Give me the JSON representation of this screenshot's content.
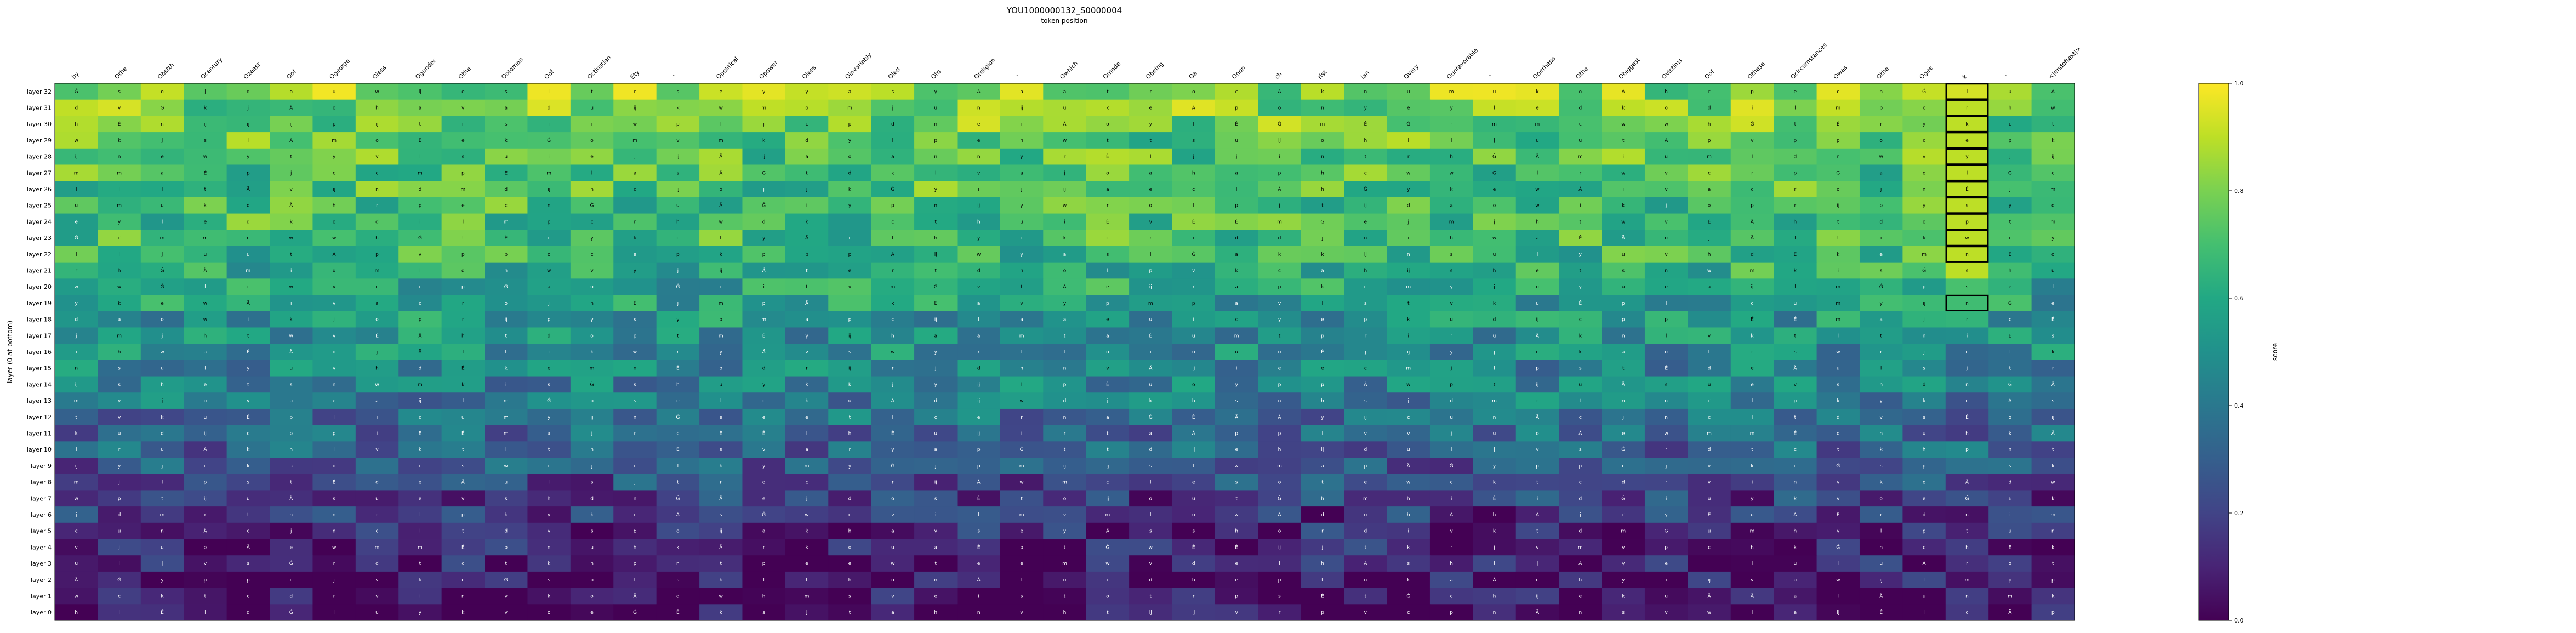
{
  "chart_data": {
    "type": "heatmap",
    "title": "YOU1000000132_S0000004",
    "xlabel": "token position",
    "ylabel": "layer (0 at bottom)",
    "colorbar_label": "score",
    "colorbar_range": [
      0.0,
      1.0
    ],
    "colorbar_ticks": [
      "0.0",
      "0.2",
      "0.4",
      "0.6",
      "0.8",
      "1.0"
    ],
    "colormap": "viridis",
    "x_tokens": [
      "by",
      "Othe",
      "Obstth",
      "Ocentury",
      "Ozeast",
      "Oof",
      "Ogeorge",
      "Oiess",
      "Ogunder",
      "Othe",
      "Ootoman",
      "Oof",
      "Octinstian",
      "Ety",
      "ˋ",
      "Opolitical",
      "Opower",
      "Oiess",
      "Oinvariably",
      "Oled",
      "Oto",
      "Oreligion",
      "ˋ",
      "Owhich",
      "Omade",
      "Obeing",
      "Oa",
      "Onon",
      "ch",
      "rist",
      "ian",
      "Overy",
      "Ounfavorable",
      "ˋ",
      "Operhaps",
      "Othe",
      "Obiggest",
      "Ovictims",
      "Oof",
      "Othese",
      "Ocircumstances",
      "Owas",
      "Othe",
      "Ogee",
      "k",
      "ˋ",
      "<|endoftext|>"
    ],
    "y_labels": [
      "layer 32",
      "layer 31",
      "layer 30",
      "layer 29",
      "layer 28",
      "layer 27",
      "layer 26",
      "layer 25",
      "layer 24",
      "layer 23",
      "layer 22",
      "layer 21",
      "layer 20",
      "layer 19",
      "layer 18",
      "layer 17",
      "layer 16",
      "layer 15",
      "layer 14",
      "layer 13",
      "layer 12",
      "layer 11",
      "layer 10",
      "layer 9",
      "layer 8",
      "layer 7",
      "layer 6",
      "layer 5",
      "layer 4",
      "layer 3",
      "layer 2",
      "layer 1",
      "layer 0"
    ],
    "layer_base_scores": [
      0.82,
      0.79,
      0.77,
      0.75,
      0.73,
      0.72,
      0.71,
      0.7,
      0.69,
      0.68,
      0.66,
      0.62,
      0.58,
      0.55,
      0.52,
      0.5,
      0.48,
      0.46,
      0.44,
      0.42,
      0.36,
      0.33,
      0.31,
      0.27,
      0.22,
      0.18,
      0.15,
      0.12,
      0.1,
      0.08,
      0.06,
      0.04,
      0.02
    ],
    "highlighted_column": "k",
    "highlighted_layers": [
      "layer 32",
      "layer 31",
      "layer 30",
      "layer 29",
      "layer 28",
      "layer 27",
      "layer 26",
      "layer 25",
      "layer 24",
      "layer 23",
      "layer 22",
      "layer 19"
    ],
    "cell_glyphs": [
      "s",
      "e",
      "i",
      "t",
      "a",
      "o",
      "n",
      "r",
      "w",
      "Ä",
      "Ġ",
      "Ė",
      "m",
      "d",
      "ĳ",
      "c",
      "h",
      "l",
      "p",
      "u",
      "v",
      "k",
      "j",
      "y"
    ]
  }
}
